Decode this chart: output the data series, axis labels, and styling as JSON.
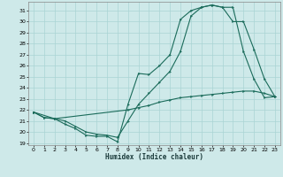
{
  "xlabel": "Humidex (Indice chaleur)",
  "bg_color": "#cee9e9",
  "grid_color": "#aad4d4",
  "line_color": "#1a6b5a",
  "xlim": [
    -0.5,
    23.5
  ],
  "ylim": [
    18.8,
    31.8
  ],
  "xticks": [
    0,
    1,
    2,
    3,
    4,
    5,
    6,
    7,
    8,
    9,
    10,
    11,
    12,
    13,
    14,
    15,
    16,
    17,
    18,
    19,
    20,
    21,
    22,
    23
  ],
  "yticks": [
    19,
    20,
    21,
    22,
    23,
    24,
    25,
    26,
    27,
    28,
    29,
    30,
    31
  ],
  "line1_x": [
    0,
    1,
    2,
    3,
    4,
    5,
    6,
    7,
    8,
    9,
    10,
    11,
    12,
    13,
    14,
    15,
    16,
    17,
    18,
    19,
    20,
    21,
    22,
    23
  ],
  "line1_y": [
    21.8,
    21.3,
    21.2,
    20.7,
    20.3,
    19.7,
    19.6,
    19.6,
    19.1,
    22.5,
    25.3,
    25.2,
    26.0,
    27.0,
    30.2,
    31.0,
    31.3,
    31.5,
    31.3,
    31.3,
    27.3,
    24.8,
    23.1,
    23.2
  ],
  "line2_x": [
    0,
    1,
    2,
    3,
    4,
    5,
    6,
    7,
    8,
    9,
    10,
    11,
    12,
    13,
    14,
    15,
    16,
    17,
    18,
    19,
    20,
    21,
    22,
    23
  ],
  "line2_y": [
    21.8,
    21.3,
    21.2,
    21.0,
    20.5,
    20.0,
    19.8,
    19.7,
    19.5,
    21.0,
    22.5,
    23.5,
    24.5,
    25.5,
    27.3,
    30.5,
    31.3,
    31.5,
    31.3,
    30.0,
    30.0,
    27.5,
    24.8,
    23.2
  ],
  "line3_x": [
    0,
    2,
    9,
    10,
    11,
    12,
    13,
    14,
    15,
    16,
    17,
    18,
    19,
    20,
    21,
    22,
    23
  ],
  "line3_y": [
    21.8,
    21.2,
    22.0,
    22.2,
    22.4,
    22.7,
    22.9,
    23.1,
    23.2,
    23.3,
    23.4,
    23.5,
    23.6,
    23.7,
    23.7,
    23.5,
    23.2
  ]
}
